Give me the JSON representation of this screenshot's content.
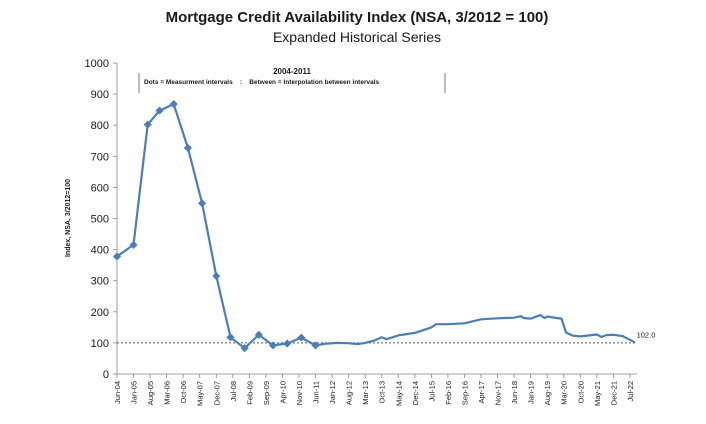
{
  "chart_data": {
    "type": "line",
    "title": "Mortgage Credit Availability Index (NSA, 3/2012 = 100)",
    "subtitle": "Expanded Historical Series",
    "ylabel": "Index, NSA, 3/2012=100",
    "xlabel": "",
    "ylim": [
      0,
      1000
    ],
    "y_ticks": [
      0,
      100,
      200,
      300,
      400,
      500,
      600,
      700,
      800,
      900,
      1000
    ],
    "x_tick_labels": [
      "Jun-04",
      "Jan-05",
      "Aug-05",
      "Mar-06",
      "Oct-06",
      "May-07",
      "Dec-07",
      "Jul-08",
      "Feb-09",
      "Sep-09",
      "Apr-10",
      "Nov-10",
      "Jun-11",
      "Jan-12",
      "Aug-12",
      "Mar-13",
      "Oct-13",
      "May-14",
      "Dec-14",
      "Jul-15",
      "Feb-16",
      "Sep-16",
      "Apr-17",
      "Nov-17",
      "Jun-18",
      "Jan-19",
      "Aug-19",
      "Mar-20",
      "Oct-20",
      "May-21",
      "Dec-21",
      "Jul-22"
    ],
    "annotation": {
      "heading": "2004-2011",
      "text": "Dots = Measurment intervals    :    Between = Interpolation between intervals"
    },
    "end_label": "102.0",
    "reference_line": {
      "value": 100,
      "style": "dotted"
    },
    "grid": false,
    "series": [
      {
        "color": "#4a7ebb",
        "markers": [
          {
            "x": "Jun-04",
            "y": 378
          },
          {
            "x": "Jan-05",
            "y": 415
          },
          {
            "x": "Jul-05",
            "y": 802
          },
          {
            "x": "Dec-05",
            "y": 847
          },
          {
            "x": "Jun-06",
            "y": 868
          },
          {
            "x": "Dec-06",
            "y": 727
          },
          {
            "x": "Jun-07",
            "y": 549
          },
          {
            "x": "Dec-07",
            "y": 315
          },
          {
            "x": "Jun-08",
            "y": 118
          },
          {
            "x": "Dec-08",
            "y": 83
          },
          {
            "x": "Jun-09",
            "y": 126
          },
          {
            "x": "Dec-09",
            "y": 92
          },
          {
            "x": "Jun-10",
            "y": 98
          },
          {
            "x": "Dec-10",
            "y": 117
          },
          {
            "x": "Jun-11",
            "y": 92
          }
        ],
        "points": [
          {
            "x": "Jun-04",
            "y": 378
          },
          {
            "x": "Jan-05",
            "y": 415
          },
          {
            "x": "Jul-05",
            "y": 802
          },
          {
            "x": "Dec-05",
            "y": 847
          },
          {
            "x": "Jun-06",
            "y": 868
          },
          {
            "x": "Dec-06",
            "y": 727
          },
          {
            "x": "Jun-07",
            "y": 549
          },
          {
            "x": "Dec-07",
            "y": 315
          },
          {
            "x": "Jun-08",
            "y": 118
          },
          {
            "x": "Dec-08",
            "y": 83
          },
          {
            "x": "Jun-09",
            "y": 126
          },
          {
            "x": "Dec-09",
            "y": 92
          },
          {
            "x": "Jun-10",
            "y": 98
          },
          {
            "x": "Dec-10",
            "y": 117
          },
          {
            "x": "Jun-11",
            "y": 92
          },
          {
            "x": "Oct-11",
            "y": 97
          },
          {
            "x": "Mar-12",
            "y": 100
          },
          {
            "x": "Aug-12",
            "y": 99
          },
          {
            "x": "Dec-12",
            "y": 96
          },
          {
            "x": "Mar-13",
            "y": 100
          },
          {
            "x": "Jul-13",
            "y": 108
          },
          {
            "x": "Oct-13",
            "y": 118
          },
          {
            "x": "Dec-13",
            "y": 112
          },
          {
            "x": "May-14",
            "y": 124
          },
          {
            "x": "Dec-14",
            "y": 132
          },
          {
            "x": "Jul-15",
            "y": 150
          },
          {
            "x": "Sep-15",
            "y": 160
          },
          {
            "x": "Feb-16",
            "y": 160
          },
          {
            "x": "Sep-16",
            "y": 163
          },
          {
            "x": "Apr-17",
            "y": 176
          },
          {
            "x": "Nov-17",
            "y": 179
          },
          {
            "x": "Jun-18",
            "y": 181
          },
          {
            "x": "Sep-18",
            "y": 186
          },
          {
            "x": "Oct-18",
            "y": 180
          },
          {
            "x": "Jan-19",
            "y": 178
          },
          {
            "x": "May-19",
            "y": 189
          },
          {
            "x": "Jul-19",
            "y": 180
          },
          {
            "x": "Aug-19",
            "y": 185
          },
          {
            "x": "Dec-19",
            "y": 180
          },
          {
            "x": "Feb-20",
            "y": 178
          },
          {
            "x": "Apr-20",
            "y": 133
          },
          {
            "x": "Jul-20",
            "y": 123
          },
          {
            "x": "Oct-20",
            "y": 121
          },
          {
            "x": "Feb-21",
            "y": 124
          },
          {
            "x": "May-21",
            "y": 127
          },
          {
            "x": "Jul-21",
            "y": 119
          },
          {
            "x": "Sep-21",
            "y": 125
          },
          {
            "x": "Dec-21",
            "y": 126
          },
          {
            "x": "Apr-22",
            "y": 122
          },
          {
            "x": "Jul-22",
            "y": 110
          },
          {
            "x": "Sep-22",
            "y": 102
          }
        ]
      }
    ]
  }
}
